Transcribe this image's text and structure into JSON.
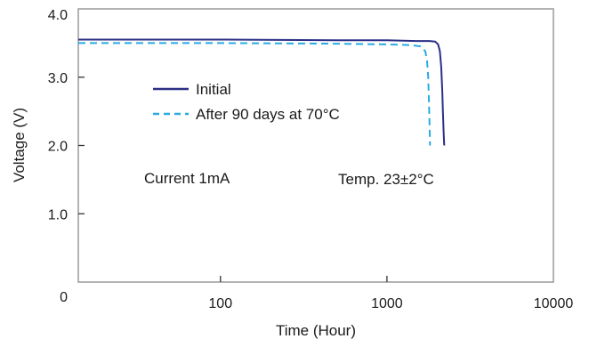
{
  "chart_data": {
    "type": "line",
    "title": "",
    "xlabel": "Time (Hour)",
    "ylabel": "Voltage (V)",
    "x_scale": "log",
    "xlim": [
      14,
      10000
    ],
    "ylim": [
      0,
      4.0
    ],
    "x_tick_labels": [
      "100",
      "1000",
      "10000"
    ],
    "x_ticks": [
      100,
      1000,
      10000
    ],
    "y_tick_labels": [
      "0",
      "1.0",
      "2.0",
      "3.0",
      "4.0"
    ],
    "y_ticks": [
      0,
      1.0,
      2.0,
      3.0,
      4.0
    ],
    "grid": false,
    "legend_position": "upper-left",
    "series": [
      {
        "name": "Initial",
        "color": "#2b2f86",
        "style": "solid",
        "x": [
          14,
          100,
          500,
          1000,
          1500,
          1800,
          1950,
          2030,
          2080,
          2120,
          2150,
          2170,
          2190,
          2210
        ],
        "y": [
          3.55,
          3.55,
          3.54,
          3.54,
          3.53,
          3.53,
          3.52,
          3.48,
          3.38,
          3.15,
          2.8,
          2.5,
          2.2,
          2.0
        ]
      },
      {
        "name": "After 90 days at 70°C",
        "color": "#29abe2",
        "style": "dashed",
        "x": [
          14,
          100,
          500,
          1000,
          1400,
          1600,
          1700,
          1740,
          1770,
          1790,
          1805,
          1815
        ],
        "y": [
          3.5,
          3.5,
          3.49,
          3.48,
          3.47,
          3.45,
          3.38,
          3.25,
          3.0,
          2.6,
          2.25,
          2.0
        ]
      }
    ],
    "annotations": [
      {
        "text": "Current 1mA"
      },
      {
        "text": "Temp. 23±2°C"
      }
    ]
  }
}
